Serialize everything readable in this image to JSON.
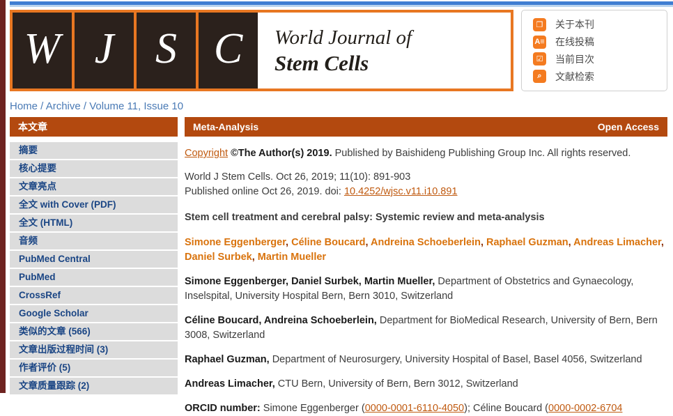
{
  "header": {
    "logo_letters": [
      "W",
      "J",
      "S",
      "C"
    ],
    "journal_name_line1": "World Journal of",
    "journal_name_line2": "Stem Cells",
    "menu": [
      {
        "label": "关于本刊",
        "icon": "journal-about-icon",
        "glyph": "❐"
      },
      {
        "label": "在线投稿",
        "icon": "online-submission-icon",
        "glyph": "A≡"
      },
      {
        "label": "当前目次",
        "icon": "current-issue-icon",
        "glyph": "☑"
      },
      {
        "label": "文献检索",
        "icon": "literature-search-icon",
        "glyph": "⌕"
      }
    ]
  },
  "breadcrumb": {
    "items": [
      "Home",
      "Archive",
      "Volume 11, Issue 10"
    ],
    "separator": " / "
  },
  "sidebar": {
    "header": "本文章",
    "items": [
      "摘要",
      "核心提要",
      "文章亮点",
      "全文 with Cover (PDF)",
      "全文 (HTML)",
      "音频",
      "PubMed Central",
      "PubMed",
      "CrossRef",
      "Google Scholar",
      "类似的文章 (566)",
      "文章出版过程时间 (3)",
      "作者评价 (5)",
      "文章质量跟踪 (2)"
    ]
  },
  "main": {
    "category": "Meta-Analysis",
    "open_access": "Open Access",
    "copyright": {
      "link": "Copyright",
      "bold": " ©The Author(s) 2019.",
      "rest": " Published by Baishideng Publishing Group Inc. All rights reserved."
    },
    "citation": "World J Stem Cells. Oct 26, 2019; 11(10): 891-903",
    "published_prefix": "Published online Oct 26, 2019. doi: ",
    "doi": "10.4252/wjsc.v11.i10.891",
    "title": "Stem cell treatment and cerebral palsy: Systemic review and meta-analysis",
    "authors": [
      "Simone Eggenberger",
      "Céline Boucard",
      "Andreina Schoeberlein",
      "Raphael Guzman",
      "Andreas Limacher",
      "Daniel Surbek",
      "Martin Mueller"
    ],
    "author_separator": ", ",
    "affiliations": [
      {
        "names": "Simone Eggenberger, Daniel Surbek, Martin Mueller,",
        "text": " Department of Obstetrics and Gynaecology, Inselspital, University Hospital Bern, Bern 3010, Switzerland"
      },
      {
        "names": "Céline Boucard, Andreina Schoeberlein,",
        "text": " Department for BioMedical Research, University of Bern, Bern 3008, Switzerland"
      },
      {
        "names": "Raphael Guzman,",
        "text": " Department of Neurosurgery, University Hospital of Basel, Basel 4056, Switzerland"
      },
      {
        "names": "Andreas Limacher,",
        "text": " CTU Bern, University of Bern, Bern 3012, Switzerland"
      }
    ],
    "orcid": {
      "label": "ORCID number: ",
      "entries": [
        {
          "pre": "Simone Eggenberger (",
          "id": "0000-0001-6110-4050",
          "post": "); "
        },
        {
          "pre": "Céline Boucard (",
          "id": "0000-0002-6704",
          "post": ""
        }
      ]
    }
  },
  "colors": {
    "rust_bar": "#b3490f",
    "logo_border_orange": "#e87722",
    "icon_orange": "#f47b20",
    "link_orange": "#c05a10",
    "author_orange": "#d9730d",
    "sidebar_text_navy": "#1a4584",
    "breadcrumb_blue": "#4a7ab5",
    "left_strip_maroon": "#6e2320",
    "topbar_blue": "#3f7ed2"
  }
}
